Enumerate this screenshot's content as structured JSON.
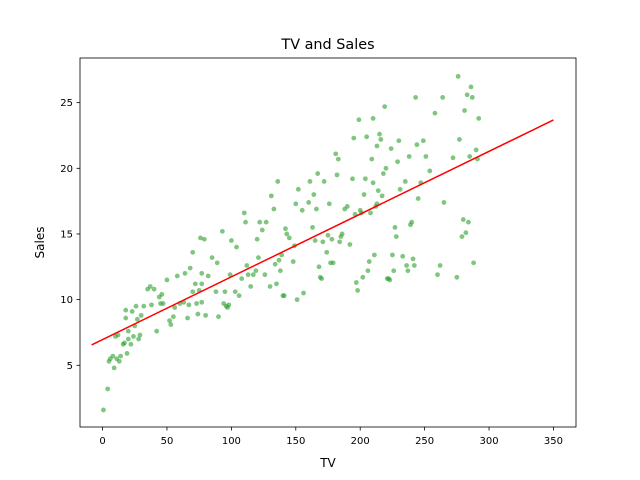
{
  "chart_data": {
    "type": "scatter",
    "title": "TV and Sales",
    "xlabel": "TV",
    "ylabel": "Sales",
    "xlim": [
      -17.5,
      367.5
    ],
    "ylim": [
      0.3,
      28.4
    ],
    "xticks": [
      0,
      50,
      100,
      150,
      200,
      250,
      300,
      350
    ],
    "yticks": [
      5,
      10,
      15,
      20,
      25
    ],
    "grid": false,
    "colors": {
      "points": "#2ca02c",
      "fit_line": "#ff0000",
      "axes": "#000000"
    },
    "series": [
      {
        "points": [
          [
            0.7,
            1.6
          ],
          [
            4,
            3.2
          ],
          [
            5,
            5.3
          ],
          [
            6,
            5.5
          ],
          [
            8,
            5.7
          ],
          [
            9,
            4.8
          ],
          [
            10,
            7.2
          ],
          [
            12,
            7.3
          ],
          [
            11,
            5.5
          ],
          [
            13,
            5.3
          ],
          [
            14,
            5.7
          ],
          [
            16,
            6.6
          ],
          [
            17,
            6.7
          ],
          [
            18,
            8.6
          ],
          [
            18,
            9.2
          ],
          [
            19,
            5.9
          ],
          [
            20,
            7.0
          ],
          [
            20,
            7.6
          ],
          [
            22,
            6.6
          ],
          [
            23,
            9.1
          ],
          [
            24,
            7.2
          ],
          [
            25,
            8.0
          ],
          [
            26,
            9.5
          ],
          [
            27,
            8.5
          ],
          [
            28,
            7.0
          ],
          [
            29,
            7.3
          ],
          [
            30,
            8.8
          ],
          [
            32,
            9.5
          ],
          [
            35,
            10.8
          ],
          [
            37,
            11.0
          ],
          [
            38,
            9.6
          ],
          [
            40,
            10.8
          ],
          [
            42,
            7.6
          ],
          [
            44,
            10.2
          ],
          [
            45,
            9.7
          ],
          [
            46,
            10.4
          ],
          [
            47,
            9.7
          ],
          [
            50,
            11.5
          ],
          [
            52,
            8.4
          ],
          [
            53,
            8.1
          ],
          [
            55,
            8.7
          ],
          [
            56,
            9.4
          ],
          [
            58,
            11.8
          ],
          [
            60,
            9.7
          ],
          [
            63,
            9.8
          ],
          [
            64,
            12.0
          ],
          [
            66,
            8.6
          ],
          [
            67,
            9.6
          ],
          [
            68,
            12.4
          ],
          [
            70,
            13.6
          ],
          [
            70,
            10.6
          ],
          [
            72,
            11.2
          ],
          [
            73,
            9.7
          ],
          [
            74,
            8.9
          ],
          [
            75,
            10.7
          ],
          [
            76,
            14.7
          ],
          [
            77,
            12.0
          ],
          [
            77,
            11.2
          ],
          [
            77,
            9.8
          ],
          [
            79,
            14.6
          ],
          [
            80,
            8.8
          ],
          [
            82,
            11.8
          ],
          [
            85,
            13.2
          ],
          [
            88,
            10.6
          ],
          [
            89,
            12.8
          ],
          [
            90,
            8.7
          ],
          [
            93,
            15.2
          ],
          [
            94,
            9.7
          ],
          [
            95,
            10.6
          ],
          [
            96,
            9.5
          ],
          [
            97,
            9.4
          ],
          [
            98,
            9.6
          ],
          [
            99,
            11.9
          ],
          [
            100,
            14.5
          ],
          [
            103,
            10.6
          ],
          [
            104,
            14.0
          ],
          [
            106,
            10.3
          ],
          [
            108,
            11.6
          ],
          [
            110,
            16.6
          ],
          [
            111,
            15.9
          ],
          [
            112,
            12.6
          ],
          [
            113,
            11.9
          ],
          [
            115,
            11.0
          ],
          [
            117,
            11.9
          ],
          [
            119,
            12.2
          ],
          [
            120,
            14.6
          ],
          [
            121,
            13.2
          ],
          [
            122,
            15.9
          ],
          [
            124,
            15.3
          ],
          [
            126,
            11.9
          ],
          [
            127,
            15.9
          ],
          [
            130,
            11.0
          ],
          [
            131,
            17.9
          ],
          [
            133,
            16.9
          ],
          [
            134,
            12.7
          ],
          [
            135,
            11.2
          ],
          [
            136,
            19.0
          ],
          [
            137,
            13.0
          ],
          [
            138,
            12.2
          ],
          [
            139,
            13.4
          ],
          [
            140,
            10.3
          ],
          [
            141,
            10.3
          ],
          [
            142,
            15.4
          ],
          [
            143,
            15.0
          ],
          [
            145,
            14.7
          ],
          [
            148,
            12.9
          ],
          [
            149,
            14.1
          ],
          [
            150,
            17.3
          ],
          [
            151,
            10.0
          ],
          [
            152,
            18.4
          ],
          [
            155,
            16.8
          ],
          [
            156,
            10.5
          ],
          [
            160,
            17.4
          ],
          [
            161,
            19.0
          ],
          [
            163,
            15.5
          ],
          [
            164,
            18.0
          ],
          [
            165,
            14.5
          ],
          [
            166,
            16.9
          ],
          [
            167,
            19.6
          ],
          [
            168,
            12.5
          ],
          [
            169,
            11.7
          ],
          [
            170,
            11.6
          ],
          [
            171,
            14.4
          ],
          [
            172,
            19.0
          ],
          [
            174,
            13.6
          ],
          [
            175,
            14.9
          ],
          [
            176,
            17.3
          ],
          [
            177,
            12.8
          ],
          [
            178,
            14.6
          ],
          [
            179,
            12.8
          ],
          [
            181,
            21.1
          ],
          [
            182,
            19.5
          ],
          [
            183,
            20.7
          ],
          [
            184,
            14.4
          ],
          [
            185,
            14.8
          ],
          [
            186,
            15.0
          ],
          [
            188,
            16.9
          ],
          [
            190,
            17.1
          ],
          [
            192,
            14.2
          ],
          [
            194,
            19.2
          ],
          [
            195,
            22.3
          ],
          [
            196,
            16.5
          ],
          [
            197,
            11.3
          ],
          [
            198,
            10.7
          ],
          [
            199,
            23.7
          ],
          [
            200,
            16.8
          ],
          [
            201,
            16.6
          ],
          [
            202,
            11.7
          ],
          [
            203,
            18.0
          ],
          [
            204,
            19.2
          ],
          [
            205,
            22.4
          ],
          [
            206,
            12.2
          ],
          [
            207,
            12.9
          ],
          [
            208,
            16.6
          ],
          [
            209,
            20.7
          ],
          [
            210,
            18.9
          ],
          [
            210,
            23.8
          ],
          [
            211,
            13.4
          ],
          [
            212,
            17.1
          ],
          [
            213,
            17.3
          ],
          [
            213,
            21.7
          ],
          [
            214,
            18.3
          ],
          [
            215,
            22.6
          ],
          [
            216,
            22.2
          ],
          [
            217,
            17.9
          ],
          [
            218,
            19.6
          ],
          [
            219,
            24.7
          ],
          [
            220,
            20.0
          ],
          [
            221,
            11.6
          ],
          [
            222,
            11.6
          ],
          [
            223,
            11.5
          ],
          [
            224,
            21.5
          ],
          [
            225,
            13.4
          ],
          [
            226,
            12.2
          ],
          [
            227,
            15.5
          ],
          [
            228,
            14.8
          ],
          [
            229,
            20.5
          ],
          [
            230,
            22.1
          ],
          [
            231,
            18.4
          ],
          [
            233,
            13.3
          ],
          [
            235,
            19.0
          ],
          [
            236,
            12.6
          ],
          [
            237,
            12.2
          ],
          [
            238,
            20.9
          ],
          [
            239,
            15.7
          ],
          [
            240,
            15.9
          ],
          [
            241,
            13.1
          ],
          [
            242,
            12.6
          ],
          [
            243,
            25.4
          ],
          [
            244,
            21.8
          ],
          [
            245,
            17.7
          ],
          [
            247,
            18.9
          ],
          [
            249,
            22.1
          ],
          [
            251,
            20.9
          ],
          [
            254,
            19.8
          ],
          [
            258,
            24.2
          ],
          [
            260,
            11.9
          ],
          [
            262,
            12.6
          ],
          [
            264,
            25.4
          ],
          [
            265,
            17.4
          ],
          [
            272,
            20.8
          ],
          [
            275,
            11.7
          ],
          [
            276,
            27.0
          ],
          [
            277,
            22.2
          ],
          [
            279,
            14.8
          ],
          [
            280,
            16.1
          ],
          [
            281,
            24.4
          ],
          [
            282,
            15.1
          ],
          [
            283,
            25.6
          ],
          [
            284,
            15.9
          ],
          [
            285,
            20.9
          ],
          [
            286,
            26.2
          ],
          [
            287,
            25.4
          ],
          [
            288,
            12.8
          ],
          [
            290,
            21.4
          ],
          [
            291,
            20.7
          ],
          [
            292,
            23.8
          ]
        ]
      }
    ],
    "fit_line": {
      "x": [
        -8.5,
        350
      ],
      "y": [
        6.55,
        23.68
      ]
    }
  }
}
